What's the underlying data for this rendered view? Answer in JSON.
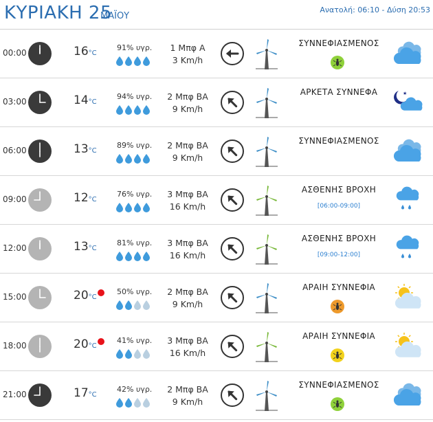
{
  "header": {
    "day": "ΚΥΡΙΑΚΗ 25",
    "month": "ΜΑΪΟΥ",
    "sun": "Ανατολή: 06:10  - Δύση 20:53"
  },
  "colors": {
    "accent": "#2b6db0",
    "hot_dot": "#e8121a",
    "drop": "#3f9bdc",
    "drop_faded": "#b9cfe0"
  },
  "rows": [
    {
      "time": "00:00",
      "temp": "16",
      "unit": "°C",
      "hot": false,
      "humidity": "91% υγρ.",
      "drops_filled": 4,
      "wind_force": "1 Μπφ Α",
      "wind_speed": "3 Km/h",
      "wind_dir": "E",
      "turbine": "blue",
      "condition": "ΣΥΝΝΕΦΙΑΣΜΕΝΟΣ",
      "range": "",
      "insect": "green",
      "weather_icon": "clouds-icon",
      "clock": "dark"
    },
    {
      "time": "03:00",
      "temp": "14",
      "unit": "°C",
      "hot": false,
      "humidity": "94% υγρ.",
      "drops_filled": 4,
      "wind_force": "2 Μπφ ΒΑ",
      "wind_speed": "9 Km/h",
      "wind_dir": "NE",
      "turbine": "blue",
      "condition": "ΑΡΚΕΤΑ ΣΥΝΝΕΦΑ",
      "range": "",
      "insect": "none",
      "weather_icon": "moon-cloud-icon",
      "clock": "dark"
    },
    {
      "time": "06:00",
      "temp": "13",
      "unit": "°C",
      "hot": false,
      "humidity": "89% υγρ.",
      "drops_filled": 4,
      "wind_force": "2 Μπφ ΒΑ",
      "wind_speed": "9 Km/h",
      "wind_dir": "NE",
      "turbine": "blue",
      "condition": "ΣΥΝΝΕΦΙΑΣΜΕΝΟΣ",
      "range": "",
      "insect": "none",
      "weather_icon": "clouds-icon",
      "clock": "dark"
    },
    {
      "time": "09:00",
      "temp": "12",
      "unit": "°C",
      "hot": false,
      "humidity": "76% υγρ.",
      "drops_filled": 4,
      "wind_force": "3 Μπφ ΒΑ",
      "wind_speed": "16 Km/h",
      "wind_dir": "NE",
      "turbine": "green",
      "condition": "ΑΣΘΕΝΗΣ ΒΡΟΧΗ",
      "range": "[06:00-09:00]",
      "insect": "none",
      "weather_icon": "rain-cloud-icon",
      "clock": "light"
    },
    {
      "time": "12:00",
      "temp": "13",
      "unit": "°C",
      "hot": false,
      "humidity": "81% υγρ.",
      "drops_filled": 4,
      "wind_force": "3 Μπφ ΒΑ",
      "wind_speed": "16 Km/h",
      "wind_dir": "NE",
      "turbine": "green",
      "condition": "ΑΣΘΕΝΗΣ ΒΡΟΧΗ",
      "range": "[09:00-12:00]",
      "insect": "none",
      "weather_icon": "rain-cloud-icon",
      "clock": "light"
    },
    {
      "time": "15:00",
      "temp": "20",
      "unit": "°C",
      "hot": true,
      "humidity": "50% υγρ.",
      "drops_filled": 2,
      "wind_force": "2 Μπφ ΒΑ",
      "wind_speed": "9 Km/h",
      "wind_dir": "NE",
      "turbine": "blue",
      "condition": "ΑΡΑΙΗ ΣΥΝΝΕΦΙΑ",
      "range": "",
      "insect": "orange",
      "weather_icon": "sun-cloud-icon",
      "clock": "light"
    },
    {
      "time": "18:00",
      "temp": "20",
      "unit": "°C",
      "hot": true,
      "humidity": "41% υγρ.",
      "drops_filled": 2,
      "wind_force": "3 Μπφ ΒΑ",
      "wind_speed": "16 Km/h",
      "wind_dir": "NE",
      "turbine": "green",
      "condition": "ΑΡΑΙΗ ΣΥΝΝΕΦΙΑ",
      "range": "",
      "insect": "yellow",
      "weather_icon": "sun-cloud-icon",
      "clock": "light"
    },
    {
      "time": "21:00",
      "temp": "17",
      "unit": "°C",
      "hot": false,
      "humidity": "42% υγρ.",
      "drops_filled": 2,
      "wind_force": "2 Μπφ ΒΑ",
      "wind_speed": "9 Km/h",
      "wind_dir": "NE",
      "turbine": "blue",
      "condition": "ΣΥΝΝΕΦΙΑΣΜΕΝΟΣ",
      "range": "",
      "insect": "green",
      "weather_icon": "clouds-icon",
      "clock": "dark"
    }
  ]
}
